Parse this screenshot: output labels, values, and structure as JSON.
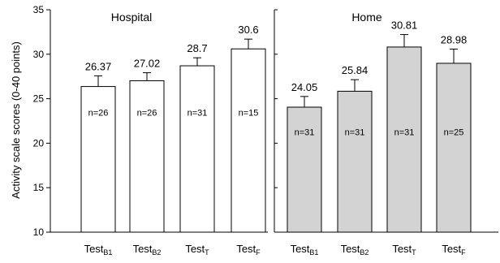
{
  "chart_data": {
    "type": "bar",
    "ylabel": "Activity scale scores (0-40 points)",
    "ylim": [
      10,
      35
    ],
    "yticks": [
      10,
      15,
      20,
      25,
      30,
      35
    ],
    "grid": false,
    "colors": {
      "hospital_fill": "#ffffff",
      "home_fill": "#d3d3d3",
      "stroke": "#000000"
    },
    "groups": [
      {
        "name": "Hospital",
        "bars": [
          {
            "base": "Test",
            "sub": "B1",
            "value": 26.37,
            "label": "26.37",
            "n": "n=26",
            "error": 1.2
          },
          {
            "base": "Test",
            "sub": "B2",
            "value": 27.02,
            "label": "27.02",
            "n": "n=26",
            "error": 0.9
          },
          {
            "base": "Test",
            "sub": "T",
            "value": 28.7,
            "label": "28.7",
            "n": "n=31",
            "error": 0.9
          },
          {
            "base": "Test",
            "sub": "F",
            "value": 30.6,
            "label": "30.6",
            "n": "n=15",
            "error": 1.1
          }
        ]
      },
      {
        "name": "Home",
        "bars": [
          {
            "base": "Test",
            "sub": "B1",
            "value": 24.05,
            "label": "24.05",
            "n": "n=31",
            "error": 1.2
          },
          {
            "base": "Test",
            "sub": "B2",
            "value": 25.84,
            "label": "25.84",
            "n": "n=31",
            "error": 1.3
          },
          {
            "base": "Test",
            "sub": "T",
            "value": 30.81,
            "label": "30.81",
            "n": "n=31",
            "error": 1.4
          },
          {
            "base": "Test",
            "sub": "F",
            "value": 28.98,
            "label": "28.98",
            "n": "n=25",
            "error": 1.6
          }
        ]
      }
    ]
  }
}
